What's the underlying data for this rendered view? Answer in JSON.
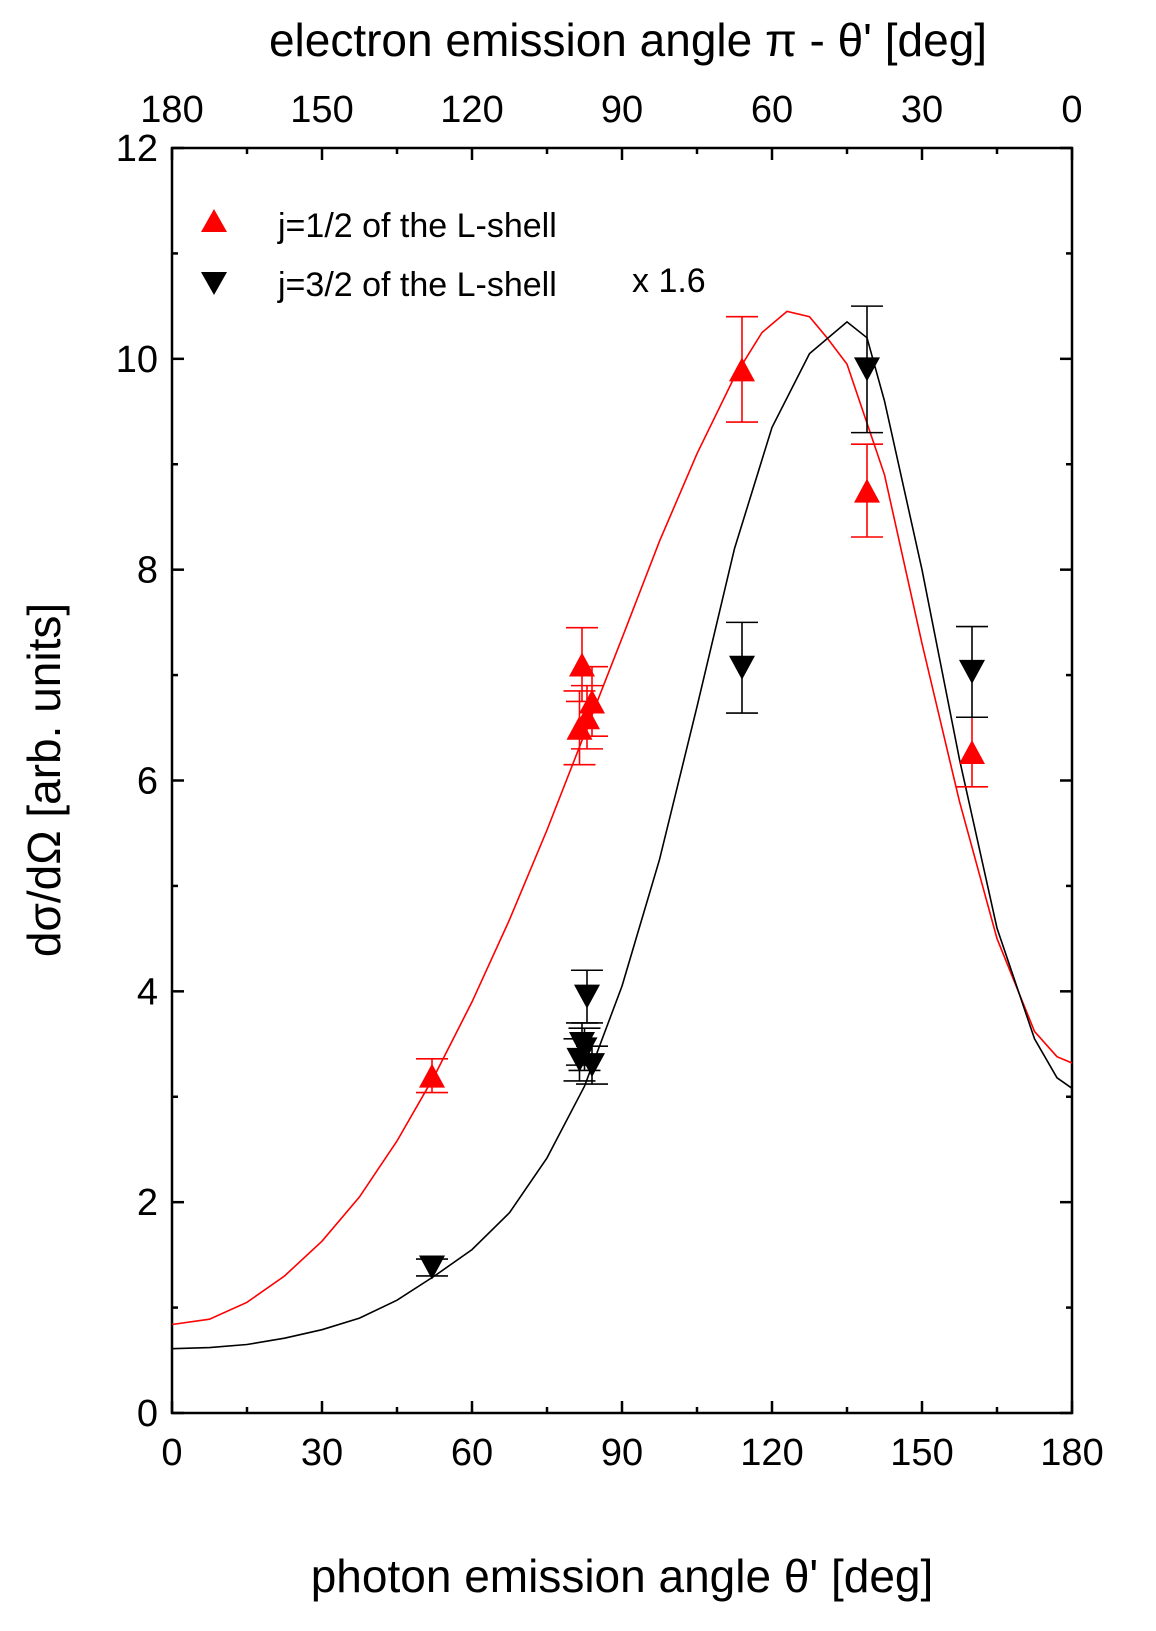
{
  "chart_data": {
    "type": "scatter",
    "xlabel": "photon emission angle θ' [deg]",
    "x2label": "electron emission angle π - θ' [deg]",
    "ylabel": "dσ/dΩ [arb. units]",
    "xlim": [
      0,
      180
    ],
    "ylim": [
      0,
      12
    ],
    "x_ticks": [
      "0",
      "30",
      "60",
      "90",
      "120",
      "150",
      "180"
    ],
    "x2_ticks": [
      "180",
      "150",
      "120",
      "90",
      "60",
      "30",
      "0"
    ],
    "y_ticks": [
      "0",
      "2",
      "4",
      "6",
      "8",
      "10",
      "12"
    ],
    "grid": false,
    "legend_position": "top-left",
    "series": [
      {
        "name": "j=1/2 of the L-shell",
        "marker": "triangle-up",
        "color": "#ff0000",
        "points": [
          {
            "x": 52,
            "y": 3.2,
            "err": 0.16
          },
          {
            "x": 81.5,
            "y": 6.5,
            "err": 0.35
          },
          {
            "x": 82,
            "y": 7.1,
            "err": 0.35
          },
          {
            "x": 83,
            "y": 6.6,
            "err": 0.3
          },
          {
            "x": 84,
            "y": 6.75,
            "err": 0.33
          },
          {
            "x": 114,
            "y": 9.9,
            "err": 0.5
          },
          {
            "x": 139,
            "y": 8.75,
            "err": 0.44
          },
          {
            "x": 160,
            "y": 6.27,
            "err": 0.33
          }
        ],
        "fit_curve": [
          [
            0,
            0.84
          ],
          [
            7.5,
            0.89
          ],
          [
            15,
            1.05
          ],
          [
            22.5,
            1.3
          ],
          [
            30,
            1.63
          ],
          [
            37.5,
            2.05
          ],
          [
            45,
            2.58
          ],
          [
            52.5,
            3.2
          ],
          [
            60,
            3.9
          ],
          [
            67.5,
            4.68
          ],
          [
            75,
            5.53
          ],
          [
            82.5,
            6.44
          ],
          [
            90,
            7.35
          ],
          [
            97.5,
            8.27
          ],
          [
            105,
            9.1
          ],
          [
            112.5,
            9.83
          ],
          [
            118,
            10.25
          ],
          [
            123,
            10.45
          ],
          [
            127.5,
            10.4
          ],
          [
            131,
            10.2
          ],
          [
            135,
            9.95
          ],
          [
            142.5,
            8.9
          ],
          [
            150,
            7.3
          ],
          [
            157.5,
            5.8
          ],
          [
            165,
            4.5
          ],
          [
            172.5,
            3.62
          ],
          [
            177,
            3.38
          ],
          [
            180,
            3.32
          ]
        ]
      },
      {
        "name": "j=3/2 of the L-shell",
        "label_suffix": "x 1.6",
        "marker": "triangle-down",
        "color": "#000000",
        "points": [
          {
            "x": 52,
            "y": 1.38,
            "err": 0.08
          },
          {
            "x": 81.5,
            "y": 3.35,
            "err": 0.2
          },
          {
            "x": 82,
            "y": 3.5,
            "err": 0.2
          },
          {
            "x": 82.5,
            "y": 3.45,
            "err": 0.2
          },
          {
            "x": 83,
            "y": 3.95,
            "err": 0.25
          },
          {
            "x": 84,
            "y": 3.3,
            "err": 0.18
          },
          {
            "x": 114,
            "y": 7.07,
            "err": 0.43
          },
          {
            "x": 139,
            "y": 9.9,
            "err": 0.6
          },
          {
            "x": 160,
            "y": 7.03,
            "err": 0.43
          }
        ],
        "fit_curve": [
          [
            0,
            0.61
          ],
          [
            7.5,
            0.62
          ],
          [
            15,
            0.65
          ],
          [
            22.5,
            0.71
          ],
          [
            30,
            0.79
          ],
          [
            37.5,
            0.9
          ],
          [
            45,
            1.07
          ],
          [
            52.5,
            1.3
          ],
          [
            60,
            1.55
          ],
          [
            67.5,
            1.9
          ],
          [
            75,
            2.42
          ],
          [
            82.5,
            3.1
          ],
          [
            90,
            4.05
          ],
          [
            97.5,
            5.25
          ],
          [
            105,
            6.7
          ],
          [
            112.5,
            8.2
          ],
          [
            120,
            9.35
          ],
          [
            127.5,
            10.05
          ],
          [
            135,
            10.35
          ],
          [
            139,
            10.2
          ],
          [
            142.5,
            9.6
          ],
          [
            150,
            8.0
          ],
          [
            157.5,
            6.2
          ],
          [
            165,
            4.6
          ],
          [
            172.5,
            3.55
          ],
          [
            177,
            3.18
          ],
          [
            180,
            3.08
          ]
        ]
      }
    ]
  }
}
